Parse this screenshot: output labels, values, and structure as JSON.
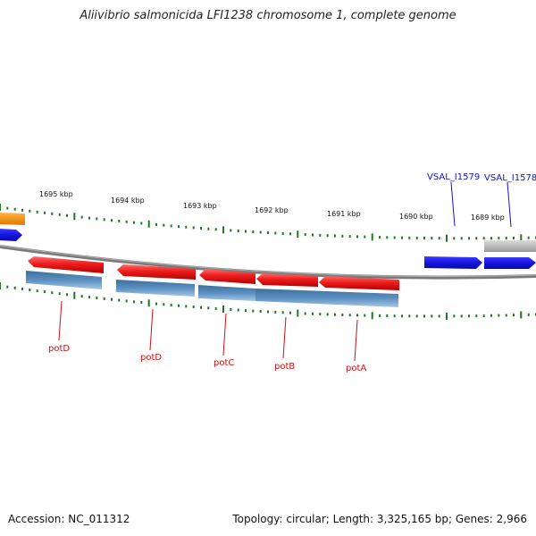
{
  "title": "Aliivibrio salmonicida LFI1238 chromosome 1, complete genome",
  "footer": {
    "accession": "Accession: NC_011312",
    "summary": "Topology: circular; Length: 3,325,165 bp; Genes: 2,966"
  },
  "colors": {
    "forward_gene": "#ee1c1c",
    "reverse_gene": "#4a7fb0",
    "other_gene": "#1a1ae0",
    "label_red": "#cc1111",
    "label_blue": "#1111cc",
    "ticks": "#227722",
    "backbone": "#777777"
  },
  "kbp_labels": [
    "1695 kbp",
    "1694 kbp",
    "1693 kbp",
    "1692 kbp",
    "1691 kbp",
    "1690 kbp",
    "1689 kbp"
  ],
  "gene_labels": [
    {
      "text": "potD",
      "color": "red"
    },
    {
      "text": "potD",
      "color": "red"
    },
    {
      "text": "potC",
      "color": "red"
    },
    {
      "text": "potB",
      "color": "red"
    },
    {
      "text": "potA",
      "color": "red"
    },
    {
      "text": "VSAL_I1579",
      "color": "blue"
    },
    {
      "text": "VSAL_I1578",
      "color": "blue"
    }
  ]
}
